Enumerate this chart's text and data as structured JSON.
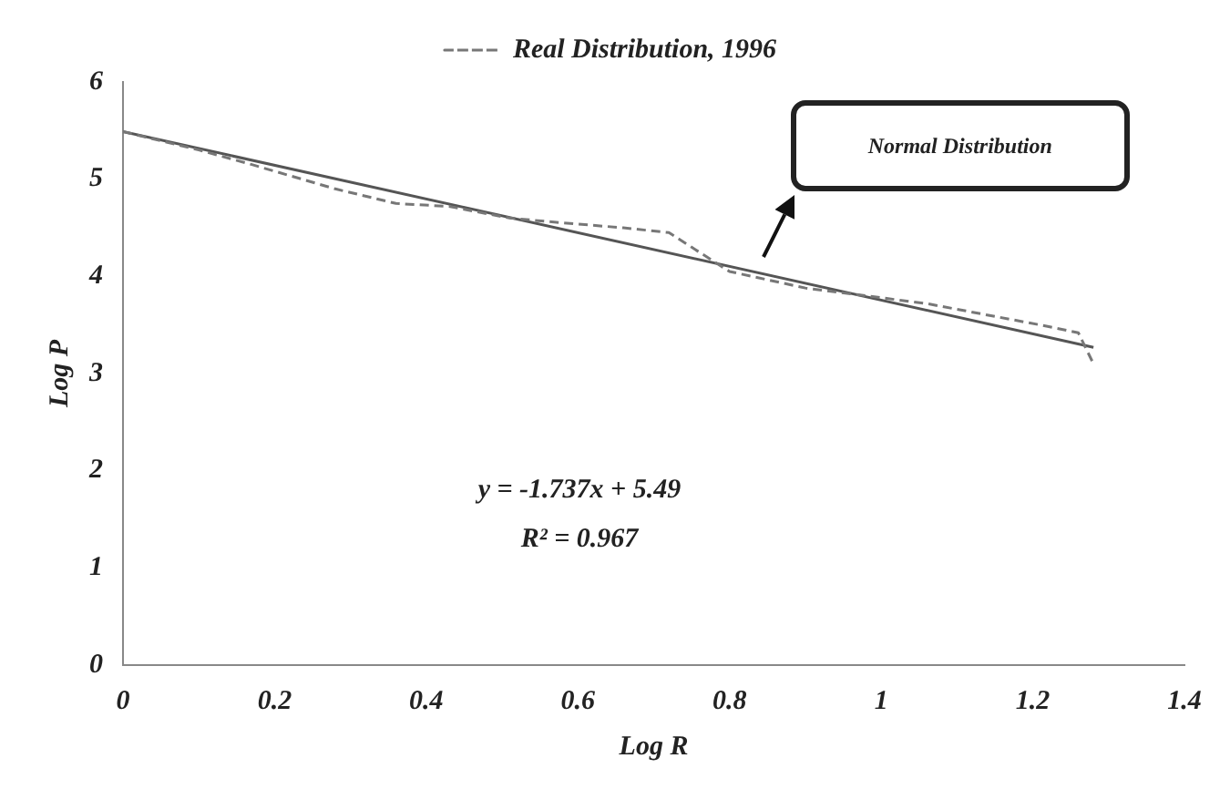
{
  "chart_data": {
    "type": "line",
    "xlabel": "Log R",
    "ylabel": "Log P",
    "xlim": [
      0,
      1.4
    ],
    "ylim": [
      0,
      6
    ],
    "xticks": [
      0,
      0.2,
      0.4,
      0.6,
      0.8,
      1,
      1.2,
      1.4
    ],
    "yticks": [
      0,
      1,
      2,
      3,
      4,
      5,
      6
    ],
    "grid": false,
    "legend": "top",
    "marker": "none",
    "series": [
      {
        "name": "Real Distribution, 1996",
        "color": "#777777",
        "line_style": "dashed",
        "x": [
          0,
          0.1,
          0.17,
          0.28,
          0.36,
          0.43,
          0.51,
          0.58,
          0.66,
          0.72,
          0.75,
          0.8,
          0.9,
          1.06,
          1.21,
          1.26,
          1.28
        ],
        "values": [
          5.49,
          5.3,
          5.15,
          4.9,
          4.75,
          4.72,
          4.6,
          4.55,
          4.5,
          4.45,
          4.3,
          4.05,
          3.88,
          3.72,
          3.5,
          3.42,
          3.1
        ]
      },
      {
        "color": "#555555",
        "line_style": "solid",
        "x": [
          0,
          1.28
        ],
        "values": [
          5.49,
          3.27
        ]
      }
    ],
    "annotations": [
      "y = -1.737x + 5.49",
      "R² = 0.967",
      "Normal Distribution"
    ]
  }
}
